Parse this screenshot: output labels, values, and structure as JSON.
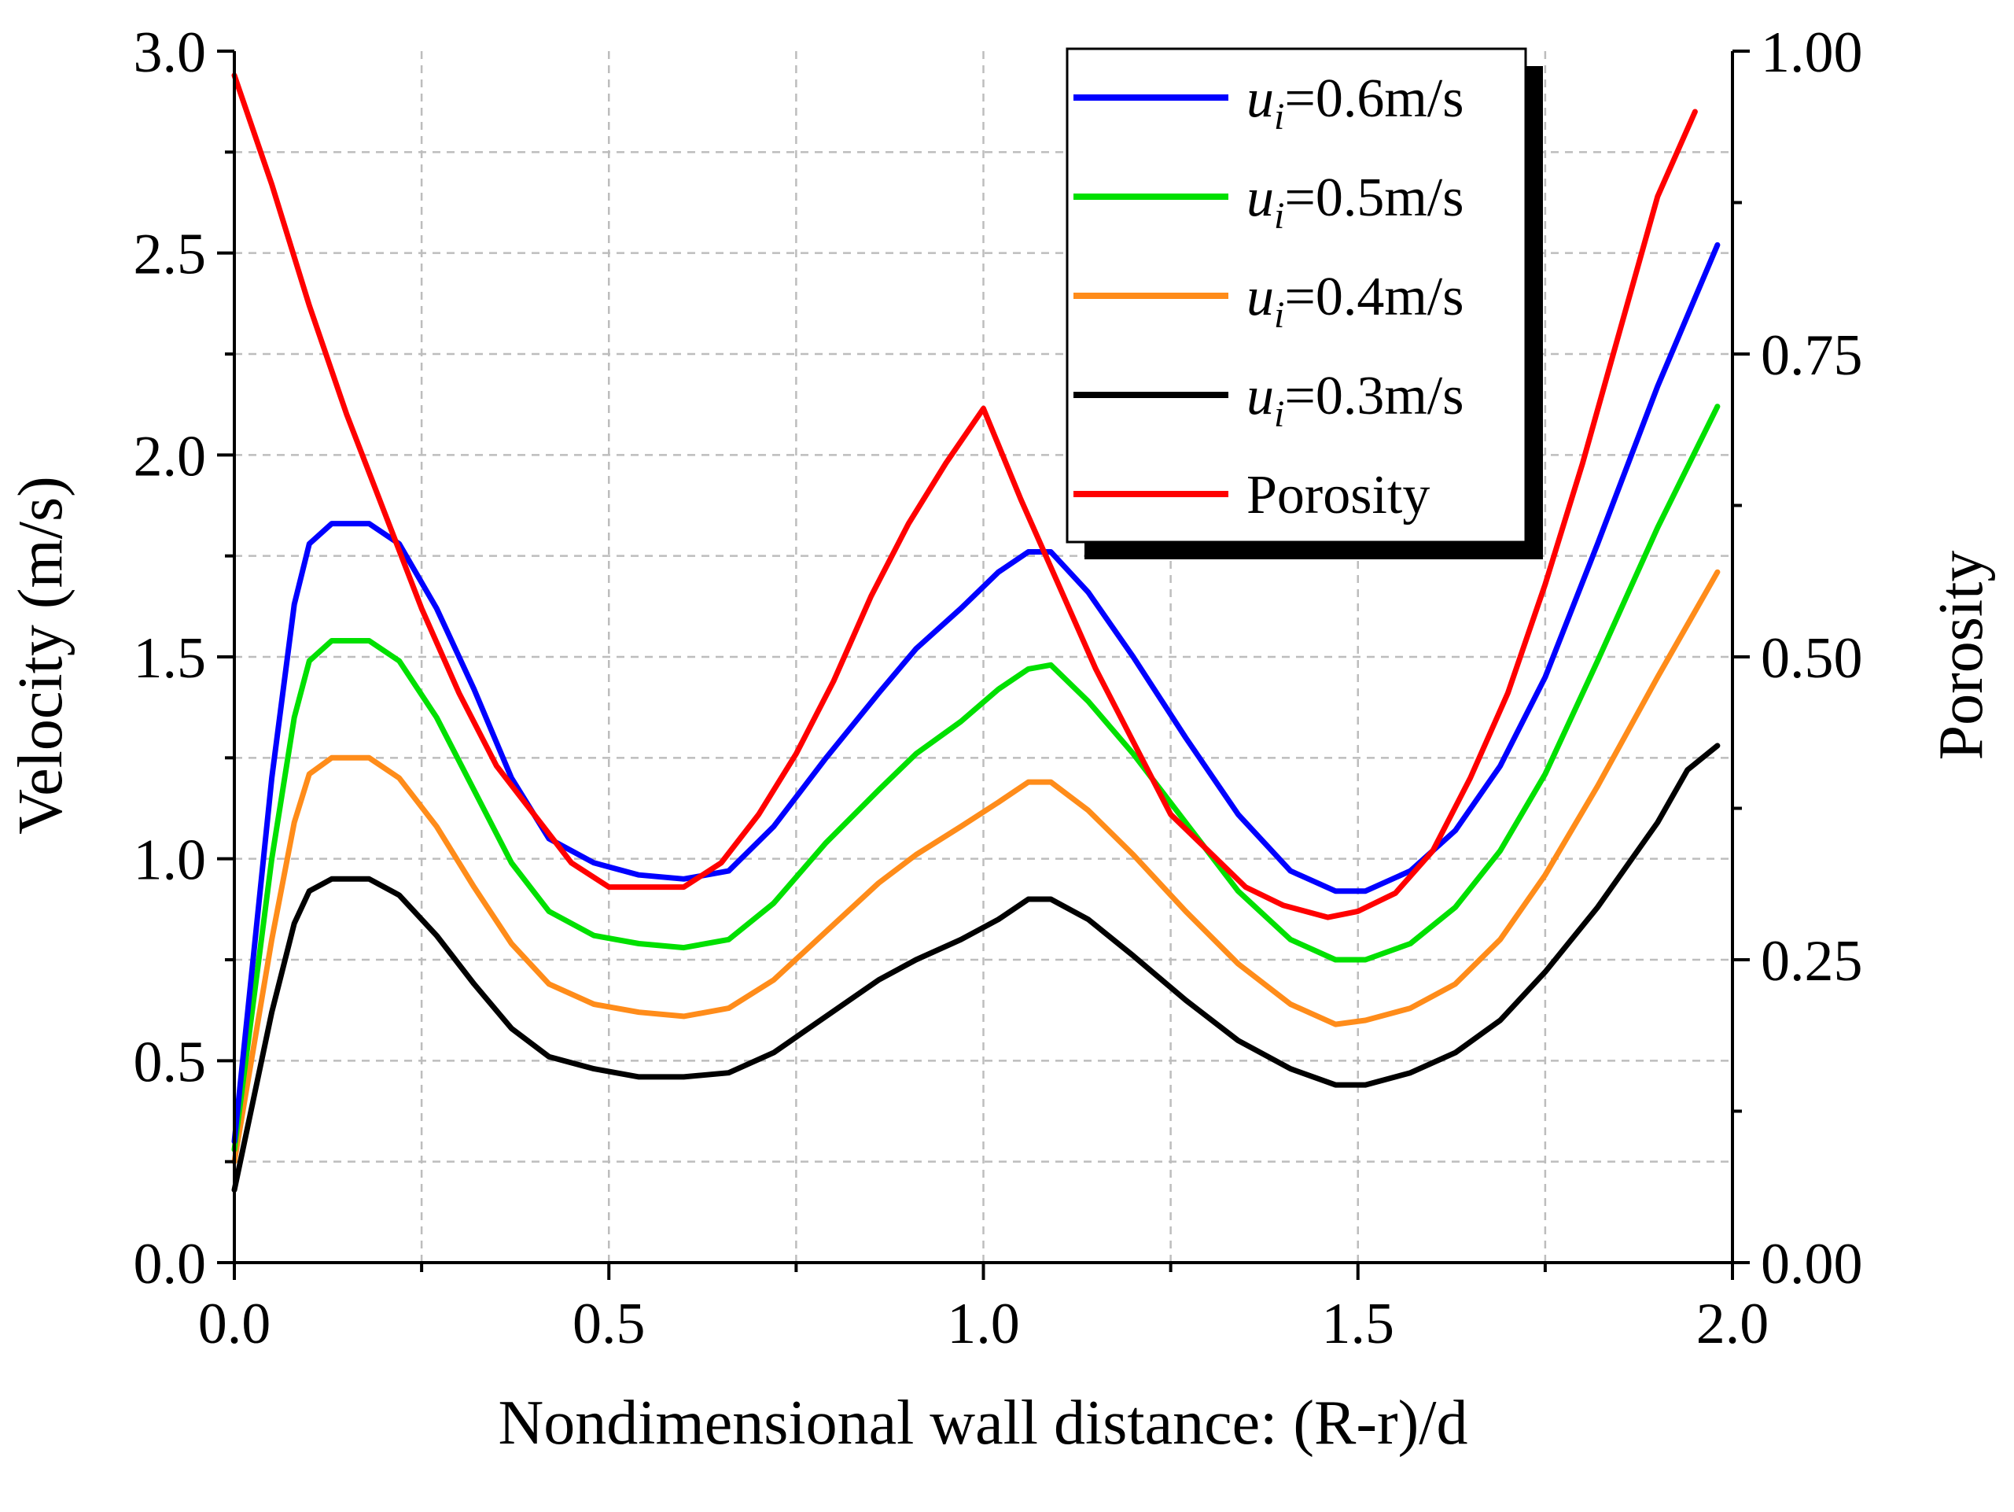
{
  "chart_data": {
    "type": "line",
    "xlabel": "Nondimensional wall distance: (R-r)/d",
    "ylabel": "Velocity (m/s)",
    "y2label": "Porosity",
    "xlim": [
      0.0,
      2.0
    ],
    "ylim": [
      0.0,
      3.0
    ],
    "y2lim": [
      0.0,
      1.0
    ],
    "x_ticks": [
      "0.0",
      "0.5",
      "1.0",
      "1.5",
      "2.0"
    ],
    "y_ticks": [
      "0.0",
      "0.5",
      "1.0",
      "1.5",
      "2.0",
      "2.5",
      "3.0"
    ],
    "y2_ticks": [
      "0.00",
      "0.25",
      "0.50",
      "0.75",
      "1.00"
    ],
    "grid": true,
    "legend_position": "top-right",
    "series": [
      {
        "name": "u_i=0.6m/s",
        "legend_main": "u",
        "legend_sub": "i",
        "legend_rest": "=0.6m/s",
        "color": "#0000ff",
        "axis": "left",
        "points": [
          [
            0.0,
            0.3
          ],
          [
            0.05,
            1.2
          ],
          [
            0.08,
            1.63
          ],
          [
            0.1,
            1.78
          ],
          [
            0.13,
            1.83
          ],
          [
            0.18,
            1.83
          ],
          [
            0.22,
            1.78
          ],
          [
            0.27,
            1.62
          ],
          [
            0.32,
            1.42
          ],
          [
            0.37,
            1.2
          ],
          [
            0.42,
            1.05
          ],
          [
            0.48,
            0.99
          ],
          [
            0.54,
            0.96
          ],
          [
            0.6,
            0.95
          ],
          [
            0.66,
            0.97
          ],
          [
            0.72,
            1.08
          ],
          [
            0.79,
            1.25
          ],
          [
            0.86,
            1.41
          ],
          [
            0.91,
            1.52
          ],
          [
            0.97,
            1.62
          ],
          [
            1.02,
            1.71
          ],
          [
            1.06,
            1.76
          ],
          [
            1.09,
            1.76
          ],
          [
            1.14,
            1.66
          ],
          [
            1.2,
            1.5
          ],
          [
            1.27,
            1.3
          ],
          [
            1.34,
            1.11
          ],
          [
            1.41,
            0.97
          ],
          [
            1.47,
            0.92
          ],
          [
            1.51,
            0.92
          ],
          [
            1.57,
            0.97
          ],
          [
            1.63,
            1.07
          ],
          [
            1.69,
            1.23
          ],
          [
            1.75,
            1.45
          ],
          [
            1.82,
            1.78
          ],
          [
            1.9,
            2.17
          ],
          [
            1.98,
            2.52
          ]
        ]
      },
      {
        "name": "u_i=0.5m/s",
        "legend_main": "u",
        "legend_sub": "i",
        "legend_rest": "=0.5m/s",
        "color": "#00e000",
        "axis": "left",
        "points": [
          [
            0.0,
            0.28
          ],
          [
            0.05,
            1.0
          ],
          [
            0.08,
            1.35
          ],
          [
            0.1,
            1.49
          ],
          [
            0.13,
            1.54
          ],
          [
            0.18,
            1.54
          ],
          [
            0.22,
            1.49
          ],
          [
            0.27,
            1.35
          ],
          [
            0.32,
            1.17
          ],
          [
            0.37,
            0.99
          ],
          [
            0.42,
            0.87
          ],
          [
            0.48,
            0.81
          ],
          [
            0.54,
            0.79
          ],
          [
            0.6,
            0.78
          ],
          [
            0.66,
            0.8
          ],
          [
            0.72,
            0.89
          ],
          [
            0.79,
            1.04
          ],
          [
            0.86,
            1.17
          ],
          [
            0.91,
            1.26
          ],
          [
            0.97,
            1.34
          ],
          [
            1.02,
            1.42
          ],
          [
            1.06,
            1.47
          ],
          [
            1.09,
            1.48
          ],
          [
            1.14,
            1.39
          ],
          [
            1.2,
            1.26
          ],
          [
            1.27,
            1.09
          ],
          [
            1.34,
            0.92
          ],
          [
            1.41,
            0.8
          ],
          [
            1.47,
            0.75
          ],
          [
            1.51,
            0.75
          ],
          [
            1.57,
            0.79
          ],
          [
            1.63,
            0.88
          ],
          [
            1.69,
            1.02
          ],
          [
            1.75,
            1.21
          ],
          [
            1.82,
            1.49
          ],
          [
            1.9,
            1.82
          ],
          [
            1.98,
            2.12
          ]
        ]
      },
      {
        "name": "u_i=0.4m/s",
        "legend_main": "u",
        "legend_sub": "i",
        "legend_rest": "=0.4m/s",
        "color": "#ff8c1a",
        "axis": "left",
        "points": [
          [
            0.0,
            0.25
          ],
          [
            0.05,
            0.8
          ],
          [
            0.08,
            1.09
          ],
          [
            0.1,
            1.21
          ],
          [
            0.13,
            1.25
          ],
          [
            0.18,
            1.25
          ],
          [
            0.22,
            1.2
          ],
          [
            0.27,
            1.08
          ],
          [
            0.32,
            0.93
          ],
          [
            0.37,
            0.79
          ],
          [
            0.42,
            0.69
          ],
          [
            0.48,
            0.64
          ],
          [
            0.54,
            0.62
          ],
          [
            0.6,
            0.61
          ],
          [
            0.66,
            0.63
          ],
          [
            0.72,
            0.7
          ],
          [
            0.79,
            0.82
          ],
          [
            0.86,
            0.94
          ],
          [
            0.91,
            1.01
          ],
          [
            0.97,
            1.08
          ],
          [
            1.02,
            1.14
          ],
          [
            1.06,
            1.19
          ],
          [
            1.09,
            1.19
          ],
          [
            1.14,
            1.12
          ],
          [
            1.2,
            1.01
          ],
          [
            1.27,
            0.87
          ],
          [
            1.34,
            0.74
          ],
          [
            1.41,
            0.64
          ],
          [
            1.47,
            0.59
          ],
          [
            1.51,
            0.6
          ],
          [
            1.57,
            0.63
          ],
          [
            1.63,
            0.69
          ],
          [
            1.69,
            0.8
          ],
          [
            1.75,
            0.96
          ],
          [
            1.82,
            1.18
          ],
          [
            1.9,
            1.45
          ],
          [
            1.98,
            1.71
          ]
        ]
      },
      {
        "name": "u_i=0.3m/s",
        "legend_main": "u",
        "legend_sub": "i",
        "legend_rest": "=0.3m/s",
        "color": "#000000",
        "axis": "left",
        "points": [
          [
            0.0,
            0.18
          ],
          [
            0.05,
            0.62
          ],
          [
            0.08,
            0.84
          ],
          [
            0.1,
            0.92
          ],
          [
            0.13,
            0.95
          ],
          [
            0.18,
            0.95
          ],
          [
            0.22,
            0.91
          ],
          [
            0.27,
            0.81
          ],
          [
            0.32,
            0.69
          ],
          [
            0.37,
            0.58
          ],
          [
            0.42,
            0.51
          ],
          [
            0.48,
            0.48
          ],
          [
            0.54,
            0.46
          ],
          [
            0.6,
            0.46
          ],
          [
            0.66,
            0.47
          ],
          [
            0.72,
            0.52
          ],
          [
            0.79,
            0.61
          ],
          [
            0.86,
            0.7
          ],
          [
            0.91,
            0.75
          ],
          [
            0.97,
            0.8
          ],
          [
            1.02,
            0.85
          ],
          [
            1.06,
            0.9
          ],
          [
            1.09,
            0.9
          ],
          [
            1.14,
            0.85
          ],
          [
            1.2,
            0.76
          ],
          [
            1.27,
            0.65
          ],
          [
            1.34,
            0.55
          ],
          [
            1.41,
            0.48
          ],
          [
            1.47,
            0.44
          ],
          [
            1.51,
            0.44
          ],
          [
            1.57,
            0.47
          ],
          [
            1.63,
            0.52
          ],
          [
            1.69,
            0.6
          ],
          [
            1.75,
            0.72
          ],
          [
            1.82,
            0.88
          ],
          [
            1.9,
            1.09
          ],
          [
            1.94,
            1.22
          ],
          [
            1.98,
            1.28
          ]
        ]
      },
      {
        "name": "Porosity",
        "legend_main": "Porosity",
        "legend_sub": "",
        "legend_rest": "",
        "color": "#ff0000",
        "axis": "right",
        "points": [
          [
            0.0,
            0.98
          ],
          [
            0.05,
            0.89
          ],
          [
            0.1,
            0.79
          ],
          [
            0.15,
            0.7
          ],
          [
            0.2,
            0.62
          ],
          [
            0.25,
            0.54
          ],
          [
            0.3,
            0.47
          ],
          [
            0.35,
            0.41
          ],
          [
            0.4,
            0.37
          ],
          [
            0.45,
            0.33
          ],
          [
            0.5,
            0.31
          ],
          [
            0.56,
            0.31
          ],
          [
            0.6,
            0.31
          ],
          [
            0.65,
            0.33
          ],
          [
            0.7,
            0.37
          ],
          [
            0.75,
            0.42
          ],
          [
            0.8,
            0.48
          ],
          [
            0.85,
            0.55
          ],
          [
            0.9,
            0.61
          ],
          [
            0.95,
            0.66
          ],
          [
            1.0,
            0.705
          ],
          [
            1.05,
            0.63
          ],
          [
            1.1,
            0.56
          ],
          [
            1.15,
            0.49
          ],
          [
            1.2,
            0.43
          ],
          [
            1.25,
            0.37
          ],
          [
            1.3,
            0.34
          ],
          [
            1.35,
            0.31
          ],
          [
            1.4,
            0.295
          ],
          [
            1.46,
            0.285
          ],
          [
            1.5,
            0.29
          ],
          [
            1.55,
            0.305
          ],
          [
            1.6,
            0.34
          ],
          [
            1.65,
            0.4
          ],
          [
            1.7,
            0.47
          ],
          [
            1.75,
            0.56
          ],
          [
            1.8,
            0.66
          ],
          [
            1.85,
            0.77
          ],
          [
            1.9,
            0.88
          ],
          [
            1.95,
            0.95
          ]
        ]
      }
    ]
  }
}
